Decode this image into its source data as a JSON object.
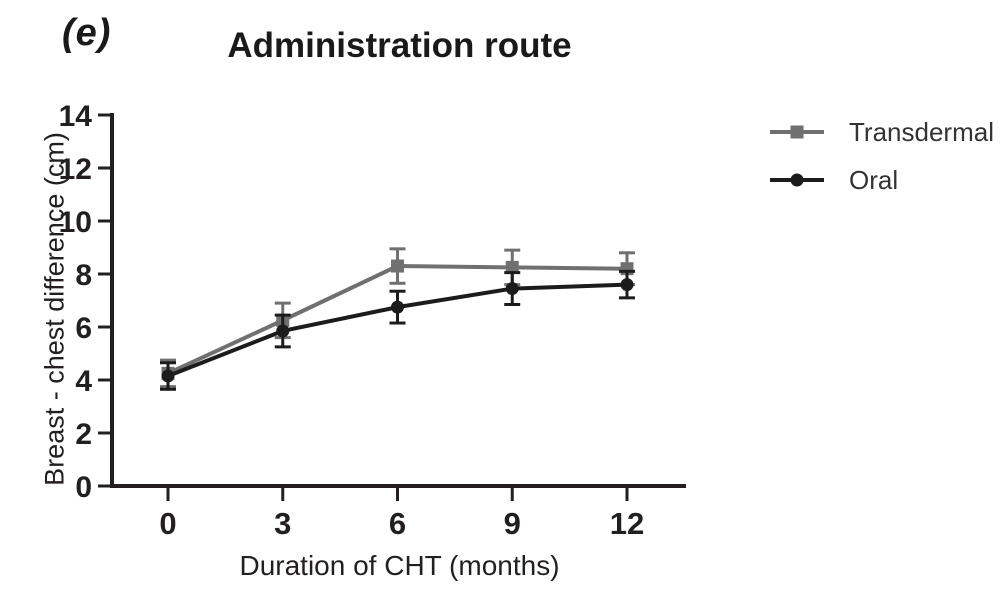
{
  "figure": {
    "panel_label": "(e)",
    "title": "Administration route"
  },
  "chart_data": {
    "type": "line",
    "title": "Administration route",
    "xlabel": "Duration of CHT (months)",
    "ylabel": "Breast - chest difference (cm)",
    "x": [
      0,
      3,
      6,
      9,
      12
    ],
    "x_tick_labels": [
      "0",
      "3",
      "6",
      "9",
      "12"
    ],
    "y_ticks": [
      0,
      2,
      4,
      6,
      8,
      10,
      12,
      14
    ],
    "ylim": [
      0,
      14
    ],
    "xlim": [
      0,
      13.5
    ],
    "grid": false,
    "error_bars": true,
    "legend_position": "right",
    "axis_color": "#231f20",
    "series": [
      {
        "name": "Transdermal",
        "marker": "square",
        "color": "#707070",
        "values": [
          4.25,
          6.25,
          8.3,
          8.25,
          8.2
        ],
        "errors": [
          0.5,
          0.65,
          0.65,
          0.65,
          0.6
        ]
      },
      {
        "name": "Oral",
        "marker": "circle",
        "color": "#1c1c1c",
        "values": [
          4.15,
          5.85,
          6.75,
          7.45,
          7.6
        ],
        "errors": [
          0.5,
          0.6,
          0.6,
          0.6,
          0.5
        ]
      }
    ]
  }
}
